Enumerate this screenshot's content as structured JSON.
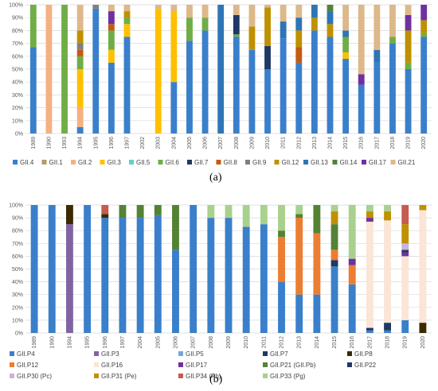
{
  "panels": [
    {
      "label": "(a)"
    },
    {
      "label": "(b)"
    }
  ],
  "chart_data": [
    {
      "type": "bar",
      "stacked": true,
      "normalized": true,
      "ylim": [
        0,
        100
      ],
      "yticks": [
        "0%",
        "10%",
        "20%",
        "30%",
        "40%",
        "50%",
        "60%",
        "70%",
        "80%",
        "90%",
        "100%"
      ],
      "grid": true,
      "legend_position": "bottom",
      "categories": [
        "1989",
        "1990",
        "1993",
        "1994",
        "1995",
        "1996",
        "1997",
        "2002",
        "2003",
        "2004",
        "2005",
        "2006",
        "2007",
        "2008",
        "2009",
        "2010",
        "2011",
        "2012",
        "2013",
        "2014",
        "2015",
        "2016",
        "2017",
        "2018",
        "2019",
        "2020"
      ],
      "series": [
        {
          "name": "GII.4",
          "color": "#3A7FCB",
          "values": [
            67,
            0,
            0,
            5,
            97,
            55,
            75,
            0,
            0,
            40,
            72,
            80,
            0,
            75,
            65,
            50,
            74,
            55,
            80,
            75,
            58,
            38,
            55,
            70,
            50,
            75
          ]
        },
        {
          "name": "GII.1",
          "color": "#B39B6B",
          "values": [
            0,
            0,
            0,
            0,
            0,
            0,
            0,
            0,
            0,
            0,
            0,
            0,
            0,
            0,
            0,
            0,
            0,
            0,
            0,
            0,
            0,
            0,
            0,
            0,
            0,
            0
          ]
        },
        {
          "name": "GII.2",
          "color": "#F4B183",
          "values": [
            0,
            100,
            0,
            15,
            0,
            0,
            0,
            0,
            0,
            0,
            0,
            0,
            0,
            0,
            0,
            0,
            0,
            0,
            0,
            0,
            0,
            0,
            0,
            0,
            0,
            0
          ]
        },
        {
          "name": "GII.3",
          "color": "#FFC000",
          "values": [
            0,
            0,
            0,
            30,
            0,
            10,
            10,
            0,
            97,
            55,
            0,
            0,
            0,
            0,
            0,
            0,
            0,
            0,
            0,
            0,
            5,
            0,
            0,
            0,
            0,
            0
          ]
        },
        {
          "name": "GII.5",
          "color": "#5FD3C8",
          "values": [
            0,
            0,
            0,
            0,
            0,
            0,
            0,
            0,
            0,
            0,
            0,
            0,
            0,
            0,
            0,
            0,
            0,
            0,
            0,
            0,
            0,
            0,
            0,
            0,
            0,
            0
          ]
        },
        {
          "name": "GII.6",
          "color": "#70AD47",
          "values": [
            33,
            0,
            100,
            10,
            0,
            15,
            5,
            0,
            0,
            0,
            18,
            10,
            0,
            2,
            0,
            0,
            0,
            0,
            0,
            0,
            12,
            0,
            0,
            5,
            5,
            3
          ]
        },
        {
          "name": "GII.7",
          "color": "#1F3864",
          "values": [
            0,
            0,
            0,
            0,
            0,
            0,
            0,
            0,
            0,
            0,
            0,
            0,
            0,
            15,
            0,
            18,
            0,
            0,
            0,
            0,
            0,
            0,
            0,
            0,
            0,
            0
          ]
        },
        {
          "name": "GII.8",
          "color": "#C55A11",
          "values": [
            0,
            0,
            0,
            5,
            0,
            5,
            0,
            0,
            0,
            0,
            0,
            0,
            0,
            0,
            0,
            0,
            0,
            12,
            0,
            0,
            0,
            0,
            0,
            0,
            0,
            0
          ]
        },
        {
          "name": "GII.9",
          "color": "#7F7F7F",
          "values": [
            0,
            0,
            0,
            5,
            3,
            0,
            0,
            0,
            0,
            0,
            0,
            0,
            0,
            0,
            0,
            0,
            0,
            0,
            0,
            0,
            0,
            0,
            0,
            0,
            0,
            0
          ]
        },
        {
          "name": "GII.12",
          "color": "#BF9000",
          "values": [
            0,
            0,
            0,
            10,
            0,
            0,
            5,
            0,
            0,
            0,
            0,
            0,
            0,
            0,
            18,
            30,
            0,
            13,
            10,
            10,
            0,
            0,
            0,
            0,
            25,
            10
          ]
        },
        {
          "name": "GII.13",
          "color": "#2E75B6",
          "values": [
            0,
            0,
            0,
            0,
            0,
            0,
            0,
            0,
            0,
            0,
            0,
            0,
            100,
            0,
            0,
            0,
            13,
            10,
            10,
            10,
            5,
            0,
            10,
            0,
            0,
            0
          ]
        },
        {
          "name": "GII.14",
          "color": "#548235",
          "values": [
            0,
            0,
            0,
            0,
            0,
            0,
            0,
            0,
            0,
            0,
            0,
            0,
            0,
            0,
            0,
            0,
            0,
            0,
            0,
            5,
            0,
            0,
            0,
            0,
            0,
            0
          ]
        },
        {
          "name": "GII.17",
          "color": "#7030A0",
          "values": [
            0,
            0,
            0,
            0,
            0,
            10,
            0,
            0,
            0,
            0,
            0,
            0,
            0,
            0,
            0,
            0,
            0,
            0,
            0,
            0,
            0,
            8,
            0,
            0,
            12,
            12
          ]
        },
        {
          "name": "GII.21",
          "color": "#DDB88A",
          "values": [
            0,
            0,
            0,
            20,
            0,
            5,
            5,
            0,
            3,
            5,
            10,
            10,
            0,
            8,
            17,
            2,
            13,
            10,
            0,
            0,
            20,
            54,
            35,
            25,
            8,
            0
          ]
        }
      ]
    },
    {
      "type": "bar",
      "stacked": true,
      "normalized": true,
      "ylim": [
        0,
        100
      ],
      "yticks": [
        "0%",
        "10%",
        "20%",
        "30%",
        "40%",
        "50%",
        "60%",
        "70%",
        "80%",
        "90%",
        "100%"
      ],
      "grid": true,
      "legend_position": "bottom",
      "categories": [
        "1989",
        "1990",
        "1994",
        "1995",
        "1996",
        "1997",
        "2004",
        "2005",
        "2006",
        "2007",
        "2008",
        "2009",
        "2010",
        "2011",
        "2012",
        "2013",
        "2014",
        "2015",
        "2016",
        "2017",
        "2018",
        "2019",
        "2020"
      ],
      "series": [
        {
          "name": "GII.P4",
          "color": "#3A7FCB",
          "values": [
            100,
            100,
            0,
            100,
            90,
            90,
            90,
            92,
            65,
            100,
            90,
            90,
            83,
            85,
            40,
            30,
            30,
            52,
            38,
            2,
            2,
            10,
            0
          ]
        },
        {
          "name": "GII.P3",
          "color": "#8064A2",
          "values": [
            0,
            0,
            85,
            0,
            0,
            0,
            0,
            0,
            0,
            0,
            0,
            0,
            0,
            0,
            0,
            0,
            0,
            0,
            0,
            0,
            0,
            0,
            0
          ]
        },
        {
          "name": "GII.P5",
          "color": "#6FA8DC",
          "values": [
            0,
            0,
            0,
            0,
            0,
            0,
            0,
            0,
            0,
            0,
            0,
            0,
            0,
            0,
            0,
            0,
            0,
            0,
            0,
            0,
            0,
            0,
            0
          ]
        },
        {
          "name": "GII.P7",
          "color": "#1F3864",
          "values": [
            0,
            0,
            0,
            0,
            0,
            0,
            0,
            0,
            0,
            0,
            0,
            0,
            0,
            0,
            0,
            0,
            0,
            5,
            0,
            2,
            6,
            0,
            0
          ]
        },
        {
          "name": "GII.P8",
          "color": "#3B2A00",
          "values": [
            0,
            0,
            15,
            0,
            3,
            0,
            0,
            0,
            0,
            0,
            0,
            0,
            0,
            0,
            0,
            0,
            0,
            0,
            0,
            0,
            0,
            0,
            8
          ]
        },
        {
          "name": "GII.P12",
          "color": "#ED7D31",
          "values": [
            0,
            0,
            0,
            0,
            0,
            0,
            0,
            0,
            0,
            0,
            0,
            0,
            0,
            0,
            35,
            60,
            48,
            8,
            15,
            0,
            0,
            0,
            0
          ]
        },
        {
          "name": "GII.P16",
          "color": "#FBE5D6",
          "values": [
            0,
            0,
            0,
            0,
            0,
            0,
            0,
            0,
            0,
            0,
            0,
            0,
            0,
            0,
            0,
            0,
            0,
            0,
            0,
            83,
            80,
            50,
            88
          ]
        },
        {
          "name": "GII.P17",
          "color": "#7030A0",
          "values": [
            0,
            0,
            0,
            0,
            0,
            0,
            0,
            0,
            0,
            0,
            0,
            0,
            0,
            0,
            0,
            0,
            0,
            0,
            5,
            3,
            0,
            3,
            0
          ]
        },
        {
          "name": "GII.P21 (GII.Pb)",
          "color": "#548235",
          "values": [
            0,
            0,
            0,
            0,
            0,
            10,
            10,
            8,
            35,
            0,
            0,
            0,
            0,
            0,
            5,
            3,
            22,
            20,
            0,
            0,
            0,
            0,
            0
          ]
        },
        {
          "name": "GII.P22",
          "color": "#203864",
          "values": [
            0,
            0,
            0,
            0,
            0,
            0,
            0,
            0,
            0,
            0,
            0,
            0,
            0,
            0,
            0,
            0,
            0,
            0,
            0,
            0,
            0,
            2,
            0
          ]
        },
        {
          "name": "GII.P30 (Pc)",
          "color": "#C9B3DE",
          "values": [
            0,
            0,
            0,
            0,
            0,
            0,
            0,
            0,
            0,
            0,
            0,
            0,
            0,
            0,
            0,
            0,
            0,
            0,
            0,
            0,
            0,
            5,
            0
          ]
        },
        {
          "name": "GII.P31 (Pe)",
          "color": "#BF9000",
          "values": [
            0,
            0,
            0,
            0,
            0,
            0,
            0,
            0,
            0,
            0,
            0,
            0,
            0,
            0,
            0,
            0,
            0,
            10,
            0,
            5,
            7,
            15,
            4
          ]
        },
        {
          "name": "GII.P34 (Ph)",
          "color": "#C65B50",
          "values": [
            0,
            0,
            0,
            0,
            7,
            0,
            0,
            0,
            0,
            0,
            0,
            0,
            0,
            0,
            0,
            0,
            0,
            0,
            0,
            0,
            0,
            15,
            0
          ]
        },
        {
          "name": "GII.P33 (Pg)",
          "color": "#A9D18E",
          "values": [
            0,
            0,
            0,
            0,
            0,
            0,
            0,
            0,
            0,
            0,
            10,
            10,
            17,
            15,
            20,
            7,
            0,
            5,
            42,
            5,
            5,
            0,
            0
          ]
        }
      ]
    }
  ]
}
